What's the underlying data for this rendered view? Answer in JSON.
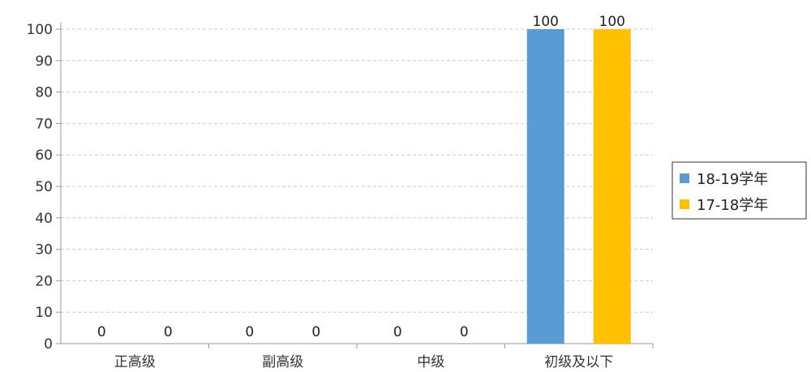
{
  "chart_data": {
    "type": "bar",
    "categories": [
      "正高级",
      "副高级",
      "中级",
      "初级及以下"
    ],
    "series": [
      {
        "name": "18-19学年",
        "values": [
          0,
          0,
          0,
          100
        ],
        "color": "#5B9BD5"
      },
      {
        "name": "17-18学年",
        "values": [
          0,
          0,
          0,
          100
        ],
        "color": "#FFC000"
      }
    ],
    "ylim": [
      0,
      100
    ],
    "yticks": [
      0,
      10,
      20,
      30,
      40,
      50,
      60,
      70,
      80,
      90,
      100
    ],
    "grid": true,
    "legend_position": "right",
    "title": "",
    "xlabel": "",
    "ylabel": ""
  }
}
